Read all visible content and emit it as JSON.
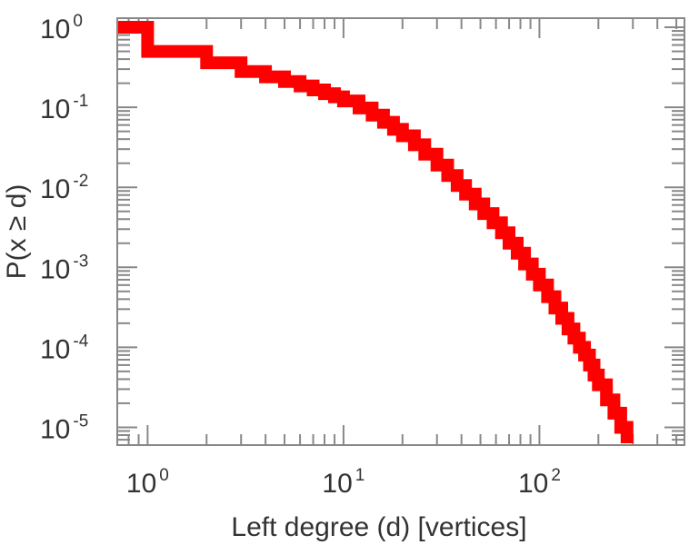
{
  "chart_data": {
    "type": "line",
    "title": "",
    "xlabel": "Left degree (d) [vertices]",
    "ylabel": "P(x ≥ d)",
    "x_scale": "log",
    "y_scale": "log",
    "xlim": [
      0.7,
      550
    ],
    "ylim": [
      6e-06,
      1.3
    ],
    "grid": false,
    "x_ticks": [
      {
        "base": "10",
        "exp": "0",
        "value": 1
      },
      {
        "base": "10",
        "exp": "1",
        "value": 10
      },
      {
        "base": "10",
        "exp": "2",
        "value": 100
      }
    ],
    "y_ticks": [
      {
        "base": "10",
        "exp": "0",
        "value": 1
      },
      {
        "base": "10",
        "exp": "-1",
        "value": 0.1
      },
      {
        "base": "10",
        "exp": "-2",
        "value": 0.01
      },
      {
        "base": "10",
        "exp": "-3",
        "value": 0.001
      },
      {
        "base": "10",
        "exp": "-4",
        "value": 0.0001
      },
      {
        "base": "10",
        "exp": "-5",
        "value": 1e-05
      }
    ],
    "series": [
      {
        "color": "#ff0000",
        "step": true,
        "x": [
          0.7,
          1,
          2,
          3,
          4,
          5,
          6,
          7,
          8,
          9,
          10,
          12,
          14,
          16,
          18,
          20,
          23,
          26,
          30,
          34,
          38,
          42,
          47,
          52,
          58,
          64,
          70,
          77,
          84,
          92,
          100,
          110,
          120,
          130,
          140,
          150,
          160,
          170,
          180,
          190,
          200,
          220,
          240,
          260,
          280
        ],
        "y": [
          1.0,
          0.5,
          0.36,
          0.28,
          0.24,
          0.21,
          0.185,
          0.165,
          0.148,
          0.135,
          0.12,
          0.098,
          0.08,
          0.065,
          0.053,
          0.044,
          0.034,
          0.026,
          0.019,
          0.014,
          0.0105,
          0.0082,
          0.0062,
          0.0047,
          0.0036,
          0.0027,
          0.002,
          0.0015,
          0.0011,
          0.00082,
          0.0006,
          0.00043,
          0.00031,
          0.00023,
          0.00017,
          0.00013,
          0.0001,
          8e-05,
          6e-05,
          4.5e-05,
          3.4e-05,
          2.2e-05,
          1.5e-05,
          1e-05,
          1e-05
        ]
      }
    ],
    "colors": {
      "line": "#ff0000",
      "axis": "#888888",
      "text": "#333333"
    }
  }
}
